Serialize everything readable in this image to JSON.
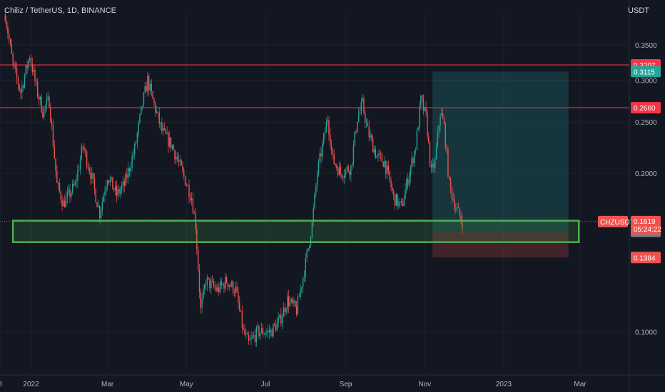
{
  "header": {
    "title": "Chiliz / TetherUS, 1D, BINANCE",
    "currency": "USDT"
  },
  "colors": {
    "background": "#131722",
    "up": "#26a69a",
    "down": "#ef5350",
    "resistance": "#f23645",
    "zone": "#4caf50",
    "grid": "#1e222d"
  },
  "chart_data": {
    "type": "candlestick",
    "symbol": "CHZUSDT",
    "y_axis": {
      "scale": "log",
      "ylim": [
        0.085,
        0.4
      ],
      "ticks": [
        {
          "value": 0.35,
          "label": "0.3500"
        },
        {
          "value": 0.3,
          "label": "0.3000"
        },
        {
          "value": 0.25,
          "label": "0.2500"
        },
        {
          "value": 0.2,
          "label": "0.2000"
        },
        {
          "value": 0.1,
          "label": "0.1000"
        }
      ]
    },
    "x_axis": {
      "range": [
        "2021-12-08",
        "2023-04-08"
      ],
      "ticks": [
        {
          "date": "2021-12-08",
          "label": "8"
        },
        {
          "date": "2022-01-01",
          "label": "2022"
        },
        {
          "date": "2022-03-01",
          "label": "Mar"
        },
        {
          "date": "2022-05-01",
          "label": "May"
        },
        {
          "date": "2022-07-01",
          "label": "Jul"
        },
        {
          "date": "2022-09-01",
          "label": "Sep"
        },
        {
          "date": "2022-11-01",
          "label": "Nov"
        },
        {
          "date": "2023-01-01",
          "label": "2023"
        },
        {
          "date": "2023-03-01",
          "label": "Mar"
        }
      ]
    },
    "price_path": [
      [
        "2021-12-12",
        0.4
      ],
      [
        "2021-12-18",
        0.32
      ],
      [
        "2021-12-24",
        0.285
      ],
      [
        "2021-12-31",
        0.335
      ],
      [
        "2022-01-05",
        0.29
      ],
      [
        "2022-01-10",
        0.262
      ],
      [
        "2022-01-15",
        0.275
      ],
      [
        "2022-01-21",
        0.19
      ],
      [
        "2022-01-26",
        0.175
      ],
      [
        "2022-02-04",
        0.19
      ],
      [
        "2022-02-10",
        0.225
      ],
      [
        "2022-02-16",
        0.2
      ],
      [
        "2022-02-23",
        0.168
      ],
      [
        "2022-03-01",
        0.198
      ],
      [
        "2022-03-08",
        0.182
      ],
      [
        "2022-03-14",
        0.19
      ],
      [
        "2022-03-22",
        0.222
      ],
      [
        "2022-03-28",
        0.27
      ],
      [
        "2022-04-01",
        0.3
      ],
      [
        "2022-04-05",
        0.275
      ],
      [
        "2022-04-12",
        0.24
      ],
      [
        "2022-04-20",
        0.225
      ],
      [
        "2022-04-28",
        0.2
      ],
      [
        "2022-05-05",
        0.18
      ],
      [
        "2022-05-08",
        0.16
      ],
      [
        "2022-05-12",
        0.11
      ],
      [
        "2022-05-16",
        0.125
      ],
      [
        "2022-05-25",
        0.12
      ],
      [
        "2022-06-01",
        0.125
      ],
      [
        "2022-06-08",
        0.12
      ],
      [
        "2022-06-14",
        0.1
      ],
      [
        "2022-06-18",
        0.095
      ],
      [
        "2022-06-25",
        0.1
      ],
      [
        "2022-07-05",
        0.1
      ],
      [
        "2022-07-12",
        0.105
      ],
      [
        "2022-07-18",
        0.115
      ],
      [
        "2022-07-25",
        0.11
      ],
      [
        "2022-08-01",
        0.135
      ],
      [
        "2022-08-06",
        0.16
      ],
      [
        "2022-08-10",
        0.2
      ],
      [
        "2022-08-14",
        0.225
      ],
      [
        "2022-08-18",
        0.255
      ],
      [
        "2022-08-22",
        0.212
      ],
      [
        "2022-08-28",
        0.2
      ],
      [
        "2022-09-05",
        0.205
      ],
      [
        "2022-09-10",
        0.255
      ],
      [
        "2022-09-14",
        0.27
      ],
      [
        "2022-09-18",
        0.24
      ],
      [
        "2022-09-25",
        0.215
      ],
      [
        "2022-10-01",
        0.21
      ],
      [
        "2022-10-08",
        0.18
      ],
      [
        "2022-10-14",
        0.172
      ],
      [
        "2022-10-20",
        0.2
      ],
      [
        "2022-10-25",
        0.225
      ],
      [
        "2022-10-29",
        0.275
      ],
      [
        "2022-11-02",
        0.255
      ],
      [
        "2022-11-06",
        0.2
      ],
      [
        "2022-11-09",
        0.21
      ],
      [
        "2022-11-13",
        0.262
      ],
      [
        "2022-11-16",
        0.245
      ],
      [
        "2022-11-20",
        0.19
      ],
      [
        "2022-11-25",
        0.172
      ],
      [
        "2022-11-30",
        0.162
      ]
    ],
    "horizontal_lines": [
      {
        "price": 0.3207,
        "label": "0.3207",
        "color": "#f23645"
      },
      {
        "price": 0.266,
        "label": "0.2660",
        "color": "#f23645"
      }
    ],
    "support_zone": {
      "from": "2021-12-18",
      "to": "2023-02-28",
      "high": 0.1625,
      "low": 0.148,
      "color": "#4caf50"
    },
    "position_tool": {
      "from": "2022-11-07",
      "to": "2023-02-20",
      "entry": 0.1551,
      "target": 0.3115,
      "stop": 0.1384,
      "target_label": "0.3115",
      "entry_label": "0.1551",
      "stop_label": "0.1384"
    },
    "last_price": {
      "symbol": "CHZUSDT",
      "value": 0.1619,
      "label": "0.1619",
      "countdown": "05:24:22"
    }
  }
}
